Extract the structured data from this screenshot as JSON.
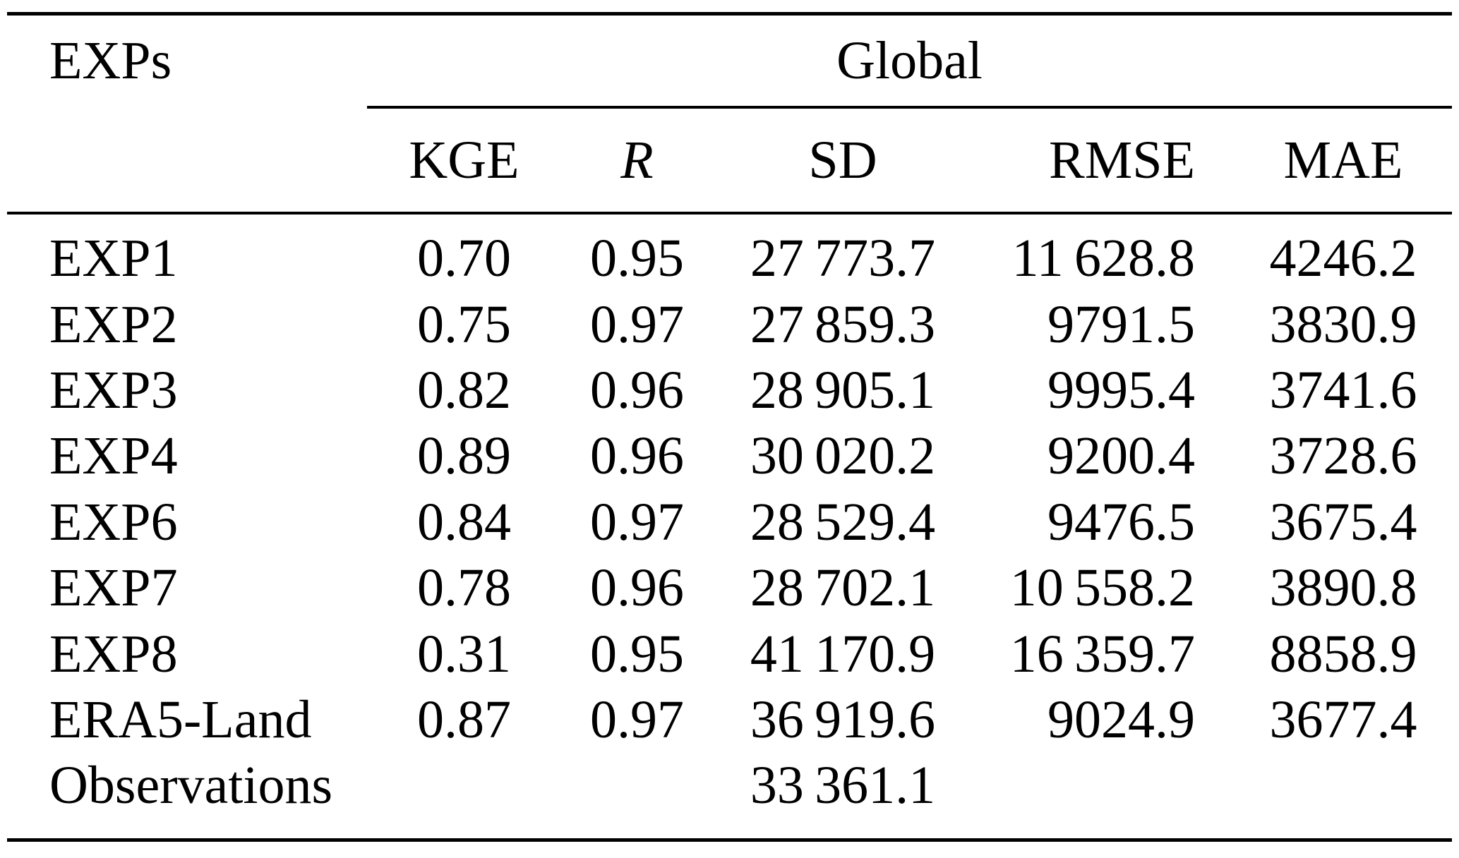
{
  "table": {
    "corner_header": "EXPs",
    "group_header": "Global",
    "columns": {
      "kge": "KGE",
      "r": "R",
      "sd": "SD",
      "rmse": "RMSE",
      "mae": "MAE"
    },
    "rows": [
      {
        "label": "EXP1",
        "kge": "0.70",
        "r": "0.95",
        "sd": "27 773.7",
        "rmse": "11 628.8",
        "mae": "4246.2"
      },
      {
        "label": "EXP2",
        "kge": "0.75",
        "r": "0.97",
        "sd": "27 859.3",
        "rmse": "9791.5",
        "mae": "3830.9"
      },
      {
        "label": "EXP3",
        "kge": "0.82",
        "r": "0.96",
        "sd": "28 905.1",
        "rmse": "9995.4",
        "mae": "3741.6"
      },
      {
        "label": "EXP4",
        "kge": "0.89",
        "r": "0.96",
        "sd": "30 020.2",
        "rmse": "9200.4",
        "mae": "3728.6"
      },
      {
        "label": "EXP6",
        "kge": "0.84",
        "r": "0.97",
        "sd": "28 529.4",
        "rmse": "9476.5",
        "mae": "3675.4"
      },
      {
        "label": "EXP7",
        "kge": "0.78",
        "r": "0.96",
        "sd": "28 702.1",
        "rmse": "10 558.2",
        "mae": "3890.8"
      },
      {
        "label": "EXP8",
        "kge": "0.31",
        "r": "0.95",
        "sd": "41 170.9",
        "rmse": "16 359.7",
        "mae": "8858.9"
      },
      {
        "label": "ERA5-Land",
        "kge": "0.87",
        "r": "0.97",
        "sd": "36 919.6",
        "rmse": "9024.9",
        "mae": "3677.4"
      },
      {
        "label": "Observations",
        "kge": "",
        "r": "",
        "sd": "33 361.1",
        "rmse": "",
        "mae": ""
      }
    ]
  }
}
